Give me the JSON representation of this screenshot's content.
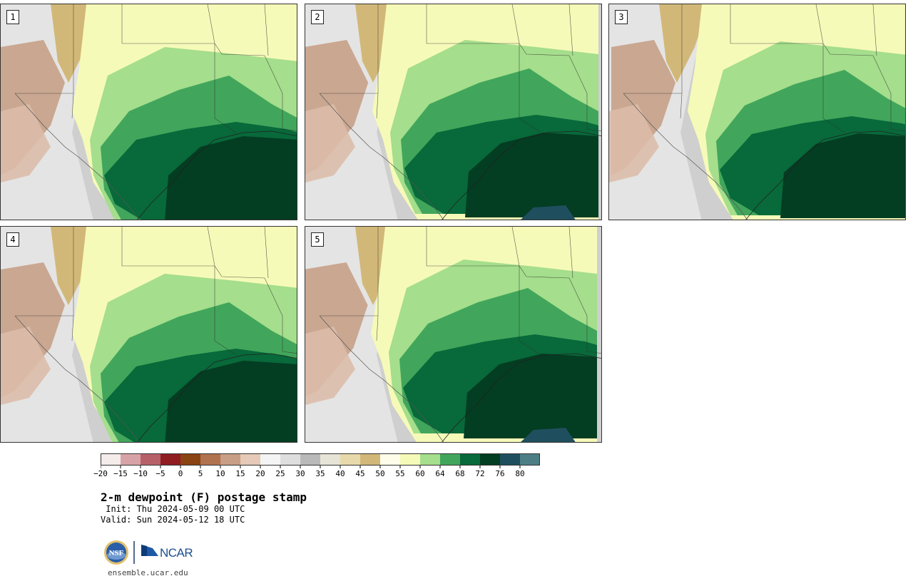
{
  "panels": [
    {
      "label": "1",
      "variant": 0
    },
    {
      "label": "2",
      "variant": 1
    },
    {
      "label": "3",
      "variant": 2
    },
    {
      "label": "4",
      "variant": 3
    },
    {
      "label": "5",
      "variant": 4
    }
  ],
  "colorbar": {
    "colors": [
      "#f3ecea",
      "#d8a3a7",
      "#b76068",
      "#8f1d22",
      "#8a4312",
      "#b0724f",
      "#c99e86",
      "#e6c9b8",
      "#f4f4f4",
      "#dedede",
      "#b9b9b9",
      "#e6e4d6",
      "#e8d9aa",
      "#d2b878",
      "#fdfdea",
      "#f6fab8",
      "#a5de8c",
      "#41a65b",
      "#08693a",
      "#033d22",
      "#1f4f5f",
      "#4d7e86"
    ],
    "tick_labels": [
      "−20",
      "−15",
      "−10",
      "−5",
      "0",
      "5",
      "10",
      "15",
      "20",
      "25",
      "30",
      "35",
      "40",
      "45",
      "50",
      "55",
      "60",
      "64",
      "68",
      "72",
      "76",
      "80"
    ]
  },
  "title": "2-m dewpoint (F) postage stamp",
  "init": " Init: Thu 2024-05-09 00 UTC",
  "valid": "Valid: Sun 2024-05-12 18 UTC",
  "logos": {
    "nsf": "NSF",
    "ncar": "NCAR"
  },
  "site": "ensemble.ucar.edu"
}
